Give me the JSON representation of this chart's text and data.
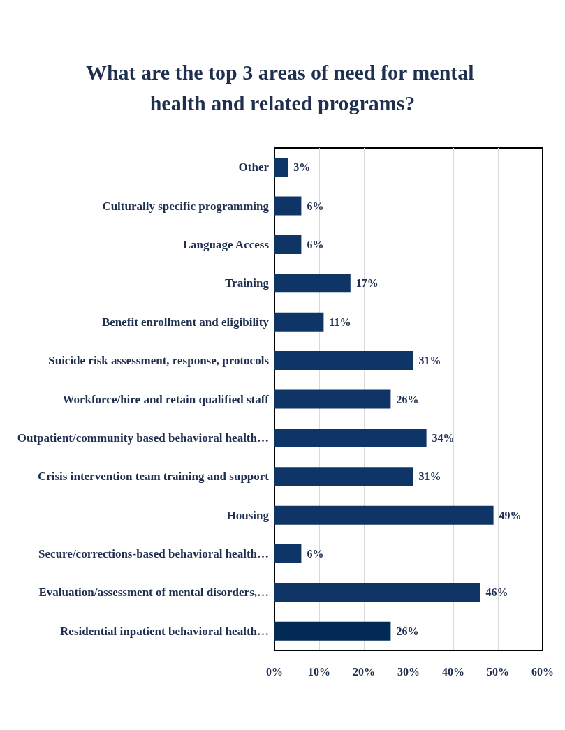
{
  "chart_data": {
    "type": "bar",
    "orientation": "horizontal",
    "title": "What are the top 3 areas of need for mental health and related programs?",
    "categories": [
      "Other",
      "Culturally specific programming",
      "Language Access",
      "Training",
      "Benefit enrollment and eligibility",
      "Suicide risk assessment, response, protocols",
      "Workforce/hire and retain qualified staff",
      "Outpatient/community based behavioral health…",
      "Crisis intervention team training and support",
      "Housing",
      "Secure/corrections-based behavioral health…",
      "Evaluation/assessment of mental disorders,…",
      "Residential inpatient behavioral health…"
    ],
    "values": [
      3,
      6,
      6,
      17,
      11,
      31,
      26,
      34,
      31,
      49,
      6,
      46,
      26
    ],
    "value_labels": [
      "3%",
      "6%",
      "6%",
      "17%",
      "11%",
      "31%",
      "26%",
      "34%",
      "31%",
      "49%",
      "6%",
      "46%",
      "26%"
    ],
    "colors": [
      "#0f3466",
      "#0f3466",
      "#0f3466",
      "#0f3466",
      "#0f3466",
      "#0f3466",
      "#0f3466",
      "#0f3466",
      "#0f3466",
      "#0f3466",
      "#0f3466",
      "#0f3466",
      "#002a55"
    ],
    "xlim": [
      0,
      60
    ],
    "xticks": [
      {
        "value": 0,
        "label": "0%"
      },
      {
        "value": 10,
        "label": "10%"
      },
      {
        "value": 20,
        "label": "20%"
      },
      {
        "value": 30,
        "label": "30%"
      },
      {
        "value": 40,
        "label": "40%"
      },
      {
        "value": 50,
        "label": "50%"
      },
      {
        "value": 60,
        "label": "60%"
      }
    ],
    "grid": "x"
  }
}
